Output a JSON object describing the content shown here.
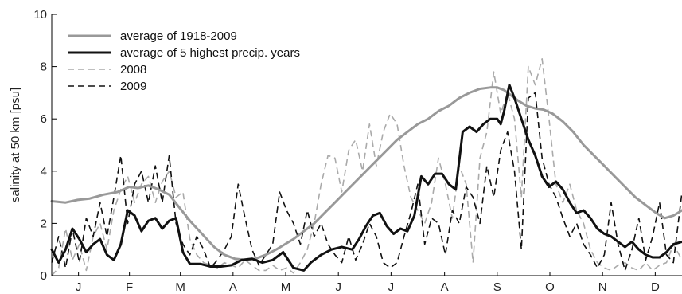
{
  "chart_data": {
    "type": "line",
    "title": "",
    "xlabel": "",
    "ylabel": "salinity at 50 km [psu]",
    "ylim": [
      0,
      10
    ],
    "yticks": [
      0,
      2,
      4,
      6,
      8,
      10
    ],
    "xlim": [
      0,
      365
    ],
    "month_labels": [
      "J",
      "F",
      "M",
      "A",
      "M",
      "J",
      "J",
      "A",
      "S",
      "O",
      "N",
      "D"
    ],
    "month_centers": [
      15.5,
      45,
      74.5,
      105,
      135.5,
      166,
      196.5,
      227.5,
      258,
      288.5,
      319,
      349.5
    ],
    "grid": false,
    "legend_position": "top-left",
    "series": [
      {
        "name": "average of 1918-2009",
        "color": "#999999",
        "style": "solid",
        "x": [
          0,
          8,
          15,
          22,
          30,
          38,
          45,
          50,
          56,
          62,
          68,
          74,
          80,
          87,
          94,
          100,
          106,
          112,
          118,
          124,
          130,
          135,
          140,
          146,
          152,
          158,
          164,
          170,
          176,
          182,
          188,
          194,
          200,
          206,
          212,
          218,
          224,
          230,
          236,
          242,
          248,
          254,
          258,
          262,
          266,
          270,
          275,
          280,
          285,
          290,
          296,
          302,
          308,
          314,
          320,
          326,
          332,
          338,
          344,
          350,
          355,
          360,
          365
        ],
        "y": [
          2.85,
          2.8,
          2.9,
          2.95,
          3.1,
          3.2,
          3.4,
          3.35,
          3.45,
          3.3,
          3.1,
          2.6,
          2.1,
          1.6,
          1.1,
          0.8,
          0.65,
          0.6,
          0.65,
          0.8,
          1.0,
          1.2,
          1.4,
          1.7,
          2.0,
          2.4,
          2.8,
          3.2,
          3.6,
          4.0,
          4.4,
          4.8,
          5.2,
          5.5,
          5.8,
          6.0,
          6.3,
          6.5,
          6.8,
          7.0,
          7.15,
          7.2,
          7.2,
          7.1,
          6.9,
          6.7,
          6.5,
          6.4,
          6.35,
          6.2,
          5.9,
          5.5,
          5.0,
          4.6,
          4.2,
          3.8,
          3.4,
          3.0,
          2.7,
          2.4,
          2.2,
          2.3,
          2.5
        ]
      },
      {
        "name": "average of 5 highest precip. years",
        "color": "#111111",
        "style": "solid",
        "x": [
          0,
          4,
          8,
          12,
          16,
          20,
          24,
          28,
          32,
          36,
          40,
          44,
          48,
          52,
          56,
          60,
          64,
          68,
          72,
          76,
          80,
          86,
          92,
          98,
          104,
          110,
          116,
          122,
          128,
          134,
          140,
          146,
          150,
          156,
          162,
          168,
          174,
          178,
          182,
          186,
          190,
          194,
          198,
          202,
          206,
          210,
          214,
          218,
          222,
          226,
          230,
          234,
          238,
          242,
          246,
          250,
          254,
          258,
          260,
          262,
          265,
          268,
          272,
          276,
          280,
          284,
          288,
          292,
          296,
          300,
          304,
          308,
          312,
          316,
          320,
          324,
          328,
          332,
          336,
          340,
          344,
          348,
          352,
          356,
          360,
          365
        ],
        "y": [
          1.0,
          0.5,
          1.0,
          1.8,
          1.4,
          0.9,
          1.2,
          1.4,
          0.8,
          0.6,
          1.2,
          2.5,
          2.3,
          1.7,
          2.1,
          2.2,
          1.8,
          2.1,
          2.2,
          0.9,
          0.45,
          0.45,
          0.35,
          0.35,
          0.4,
          0.6,
          0.65,
          0.5,
          0.6,
          0.9,
          0.3,
          0.2,
          0.5,
          0.8,
          1.0,
          1.1,
          1.0,
          1.4,
          1.9,
          2.3,
          2.4,
          1.9,
          1.6,
          1.8,
          1.7,
          2.3,
          3.8,
          3.5,
          3.9,
          3.9,
          3.5,
          3.3,
          5.5,
          5.7,
          5.5,
          5.8,
          6.0,
          6.0,
          5.8,
          6.3,
          7.3,
          6.8,
          6.0,
          5.2,
          4.6,
          3.8,
          3.4,
          3.6,
          3.3,
          2.8,
          2.4,
          2.5,
          2.2,
          1.8,
          1.6,
          1.5,
          1.3,
          1.1,
          1.3,
          1.0,
          0.8,
          0.7,
          0.7,
          0.9,
          1.2,
          1.3
        ]
      },
      {
        "name": "2008",
        "color": "#aaaaaa",
        "style": "dashed",
        "x": [
          0,
          4,
          8,
          12,
          16,
          20,
          24,
          28,
          32,
          36,
          40,
          44,
          48,
          52,
          56,
          60,
          64,
          68,
          72,
          76,
          80,
          84,
          88,
          92,
          96,
          100,
          104,
          108,
          112,
          116,
          120,
          124,
          128,
          132,
          136,
          140,
          144,
          148,
          152,
          156,
          160,
          164,
          168,
          172,
          176,
          180,
          184,
          188,
          192,
          196,
          200,
          204,
          208,
          212,
          216,
          220,
          224,
          228,
          232,
          236,
          240,
          244,
          248,
          252,
          256,
          260,
          264,
          268,
          272,
          276,
          280,
          284,
          288,
          292,
          296,
          300,
          304,
          308,
          312,
          316,
          320,
          324,
          328,
          332,
          336,
          340,
          344,
          348,
          352,
          356,
          360,
          365
        ],
        "y": [
          0.0,
          0.3,
          1.8,
          0.6,
          1.2,
          0.2,
          1.5,
          2.0,
          1.0,
          2.5,
          3.3,
          3.8,
          2.8,
          3.5,
          3.8,
          2.8,
          3.6,
          4.0,
          3.0,
          3.2,
          1.4,
          0.8,
          0.5,
          0.4,
          0.3,
          0.5,
          0.4,
          0.3,
          0.6,
          0.4,
          0.2,
          0.2,
          0.4,
          0.2,
          0.3,
          0.1,
          0.5,
          1.0,
          2.0,
          3.5,
          4.6,
          4.5,
          3.2,
          4.8,
          5.2,
          4.0,
          5.8,
          4.2,
          5.5,
          6.2,
          5.8,
          4.2,
          3.0,
          2.5,
          2.0,
          2.8,
          4.5,
          3.5,
          2.2,
          4.2,
          3.5,
          0.5,
          4.5,
          5.5,
          7.8,
          6.2,
          7.0,
          6.0,
          3.0,
          8.0,
          7.3,
          8.3,
          6.0,
          3.5,
          2.8,
          3.5,
          2.5,
          2.0,
          1.0,
          0.5,
          0.3,
          0.2,
          0.4,
          0.5,
          0.3,
          0.2,
          0.5,
          0.2,
          0.4,
          0.5,
          1.2,
          0.6
        ]
      },
      {
        "name": "2009",
        "color": "#111111",
        "style": "dashed",
        "x": [
          0,
          4,
          8,
          12,
          16,
          20,
          24,
          28,
          32,
          36,
          40,
          44,
          48,
          52,
          56,
          60,
          64,
          68,
          72,
          76,
          80,
          84,
          88,
          92,
          96,
          100,
          104,
          108,
          112,
          116,
          120,
          124,
          128,
          132,
          136,
          140,
          144,
          148,
          152,
          156,
          160,
          164,
          168,
          172,
          176,
          180,
          184,
          188,
          192,
          196,
          200,
          204,
          208,
          212,
          216,
          220,
          224,
          228,
          232,
          236,
          240,
          244,
          248,
          252,
          256,
          260,
          264,
          268,
          272,
          276,
          280,
          284,
          288,
          292,
          296,
          300,
          304,
          308,
          312,
          316,
          320,
          324,
          328,
          332,
          336,
          340,
          344,
          348,
          352,
          356,
          360,
          365
        ],
        "y": [
          0.5,
          1.5,
          0.3,
          1.8,
          0.5,
          2.2,
          1.5,
          2.8,
          1.5,
          3.0,
          4.6,
          2.0,
          3.5,
          4.0,
          2.8,
          4.2,
          2.8,
          4.6,
          2.0,
          1.2,
          0.8,
          1.5,
          1.0,
          0.3,
          0.6,
          1.0,
          1.5,
          3.5,
          2.2,
          1.0,
          0.4,
          0.8,
          1.2,
          3.2,
          2.5,
          2.0,
          1.2,
          2.5,
          1.5,
          2.0,
          1.2,
          0.8,
          0.5,
          1.5,
          0.6,
          1.2,
          2.0,
          1.5,
          0.5,
          0.3,
          0.5,
          1.5,
          2.4,
          3.5,
          1.2,
          2.2,
          2.0,
          0.8,
          2.5,
          2.0,
          3.4,
          3.0,
          2.0,
          4.2,
          3.0,
          4.8,
          5.5,
          4.0,
          1.0,
          6.8,
          7.0,
          4.5,
          3.5,
          3.0,
          2.2,
          1.5,
          2.0,
          1.2,
          0.8,
          0.3,
          0.8,
          2.8,
          1.2,
          0.2,
          1.0,
          2.2,
          0.6,
          1.5,
          2.8,
          0.8,
          0.5,
          3.2
        ]
      }
    ]
  }
}
